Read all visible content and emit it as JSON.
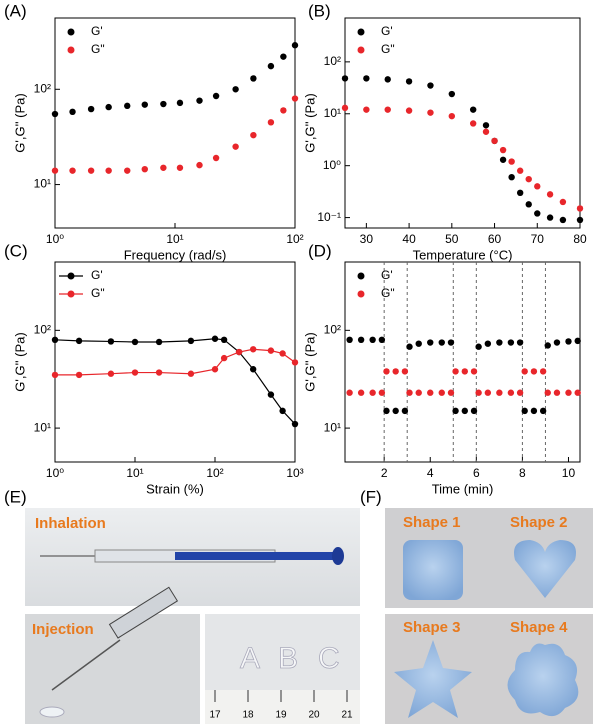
{
  "chart_data": [
    {
      "type": "scatter",
      "panel": "(A)",
      "xlabel": "Frequency (rad/s)",
      "ylabel": "G',G'' (Pa)",
      "x": [
        1,
        1.4,
        2,
        2.8,
        4,
        5.6,
        8,
        11,
        16,
        22,
        32,
        45,
        63,
        80,
        100
      ],
      "series": [
        {
          "name": "G'",
          "color": "#000000",
          "values": [
            55,
            58,
            62,
            65,
            67,
            69,
            70,
            72,
            76,
            85,
            100,
            130,
            175,
            220,
            290
          ]
        },
        {
          "name": "G\"",
          "color": "#e8262b",
          "values": [
            14,
            14,
            14,
            14,
            14,
            14.5,
            15,
            15,
            16,
            19,
            25,
            33,
            45,
            60,
            80
          ]
        }
      ],
      "xlog": true,
      "ylog": true,
      "xlim": [
        1,
        100
      ],
      "ylim": [
        3.5,
        560
      ],
      "xticks": [
        {
          "value": 1,
          "label": "10⁰"
        },
        {
          "value": 10,
          "label": "10¹"
        },
        {
          "value": 100,
          "label": "10²"
        }
      ],
      "yticks": [
        {
          "value": 10,
          "label": "10¹"
        },
        {
          "value": 100,
          "label": "10²"
        }
      ],
      "legend": "upper left"
    },
    {
      "type": "scatter",
      "panel": "(B)",
      "xlabel": "Temperature (°C)",
      "ylabel": "G',G'' (Pa)",
      "x": [
        25,
        30,
        35,
        40,
        45,
        50,
        55,
        58,
        60,
        62,
        64,
        66,
        68,
        70,
        73,
        76,
        80
      ],
      "series": [
        {
          "name": "G'",
          "color": "#000000",
          "values": [
            48,
            48,
            46,
            42,
            35,
            24,
            12,
            6,
            3,
            1.3,
            0.6,
            0.3,
            0.18,
            0.12,
            0.1,
            0.09,
            0.09
          ]
        },
        {
          "name": "G\"",
          "color": "#e8262b",
          "values": [
            13,
            12,
            12,
            11.5,
            10.5,
            9,
            6.5,
            4.5,
            3,
            2,
            1.2,
            0.8,
            0.55,
            0.4,
            0.28,
            0.2,
            0.15
          ]
        }
      ],
      "xlog": false,
      "ylog": true,
      "xlim": [
        25,
        80
      ],
      "ylim": [
        0.063,
        700
      ],
      "xticks": [
        30,
        40,
        50,
        60,
        70,
        80
      ],
      "yticks": [
        {
          "value": 0.1,
          "label": "10⁻¹"
        },
        {
          "value": 1,
          "label": "10⁰"
        },
        {
          "value": 10,
          "label": "10¹"
        },
        {
          "value": 100,
          "label": "10²"
        }
      ],
      "legend": "upper left"
    },
    {
      "type": "line",
      "panel": "(C)",
      "xlabel": "Strain (%)",
      "ylabel": "G',G'' (Pa)",
      "x": [
        1,
        2,
        5,
        10,
        20,
        50,
        100,
        130,
        200,
        300,
        500,
        700,
        1000
      ],
      "series": [
        {
          "name": "G'",
          "color": "#000000",
          "values": [
            80,
            78,
            77,
            76,
            76,
            78,
            82,
            80,
            60,
            40,
            22,
            15,
            11
          ]
        },
        {
          "name": "G\"",
          "color": "#e8262b",
          "values": [
            35,
            35,
            36,
            37,
            37,
            36,
            40,
            52,
            60,
            64,
            62,
            58,
            47
          ]
        }
      ],
      "xlog": true,
      "ylog": true,
      "xlim": [
        1,
        1000
      ],
      "ylim": [
        4.5,
        500
      ],
      "xticks": [
        {
          "value": 1,
          "label": "10⁰"
        },
        {
          "value": 10,
          "label": "10¹"
        },
        {
          "value": 100,
          "label": "10²"
        },
        {
          "value": 1000,
          "label": "10³"
        }
      ],
      "yticks": [
        {
          "value": 10,
          "label": "10¹"
        },
        {
          "value": 100,
          "label": "10²"
        }
      ],
      "legend": "upper left"
    },
    {
      "type": "scatter",
      "panel": "(D)",
      "xlabel": "Time (min)",
      "ylabel": "G',G'' (Pa)",
      "x": [
        0.5,
        1,
        1.5,
        1.9,
        2.1,
        2.5,
        2.9,
        3.1,
        3.5,
        4,
        4.5,
        4.9,
        5.1,
        5.5,
        5.9,
        6.1,
        6.5,
        7,
        7.5,
        7.9,
        8.1,
        8.5,
        8.9,
        9.1,
        9.5,
        10,
        10.4
      ],
      "series": [
        {
          "name": "G'",
          "color": "#000000",
          "values": [
            80,
            80,
            80,
            80,
            15,
            15,
            15,
            68,
            73,
            75,
            75,
            75,
            15,
            15,
            15,
            68,
            73,
            75,
            75,
            75,
            15,
            15,
            15,
            70,
            75,
            77,
            78
          ]
        },
        {
          "name": "G\"",
          "color": "#e8262b",
          "values": [
            23,
            23,
            23,
            23,
            38,
            38,
            38,
            23,
            23,
            23,
            23,
            23,
            38,
            38,
            38,
            23,
            23,
            23,
            23,
            23,
            38,
            38,
            38,
            23,
            23,
            23,
            23
          ]
        }
      ],
      "xlog": false,
      "ylog": true,
      "xlim": [
        0.3,
        10.5
      ],
      "ylim": [
        4.5,
        500
      ],
      "xticks": [
        2,
        4,
        6,
        8,
        10
      ],
      "yticks": [
        {
          "value": 10,
          "label": "10¹"
        },
        {
          "value": 100,
          "label": "10²"
        }
      ],
      "vlines": [
        2,
        3,
        5,
        6,
        8,
        9
      ],
      "legend": "upper left"
    }
  ],
  "photos": {
    "panel_e": "(E)",
    "panel_f": "(F)",
    "inhalation": "Inhalation",
    "injection": "Injection",
    "ruler": [
      17,
      18,
      19,
      20,
      21
    ],
    "shapes": [
      "Shape 1",
      "Shape 2",
      "Shape 3",
      "Shape 4"
    ]
  }
}
